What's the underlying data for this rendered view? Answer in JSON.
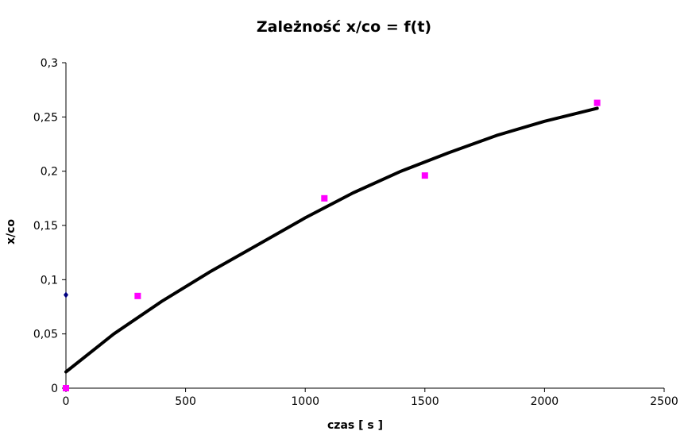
{
  "chart_data": {
    "type": "scatter",
    "title": "Zależność x/co = f(t)",
    "xlabel": "czas [ s ]",
    "ylabel": "x/co",
    "xlim": [
      0,
      2500
    ],
    "ylim": [
      0,
      0.3
    ],
    "x_ticks": [
      "0",
      "500",
      "1000",
      "1500",
      "2000",
      "2500"
    ],
    "y_ticks": [
      "0",
      "0,05",
      "0,1",
      "0,15",
      "0,2",
      "0,25",
      "0,3"
    ],
    "grid": false,
    "legend": "none",
    "series": [
      {
        "kind": "scatter",
        "marker": "square",
        "color": "#ff00ff",
        "points": [
          [
            0,
            0
          ],
          [
            300,
            0.085
          ],
          [
            1080,
            0.175
          ],
          [
            1500,
            0.196
          ],
          [
            2220,
            0.263
          ]
        ]
      },
      {
        "kind": "scatter",
        "marker": "diamond",
        "color": "#000080",
        "points": [
          [
            0,
            0.086
          ]
        ]
      },
      {
        "kind": "line",
        "color": "#000000",
        "points": [
          [
            0,
            0.015
          ],
          [
            200,
            0.05
          ],
          [
            400,
            0.08
          ],
          [
            600,
            0.107
          ],
          [
            800,
            0.132
          ],
          [
            1000,
            0.157
          ],
          [
            1200,
            0.18
          ],
          [
            1400,
            0.2
          ],
          [
            1600,
            0.217
          ],
          [
            1800,
            0.233
          ],
          [
            2000,
            0.246
          ],
          [
            2220,
            0.258
          ]
        ]
      }
    ]
  }
}
